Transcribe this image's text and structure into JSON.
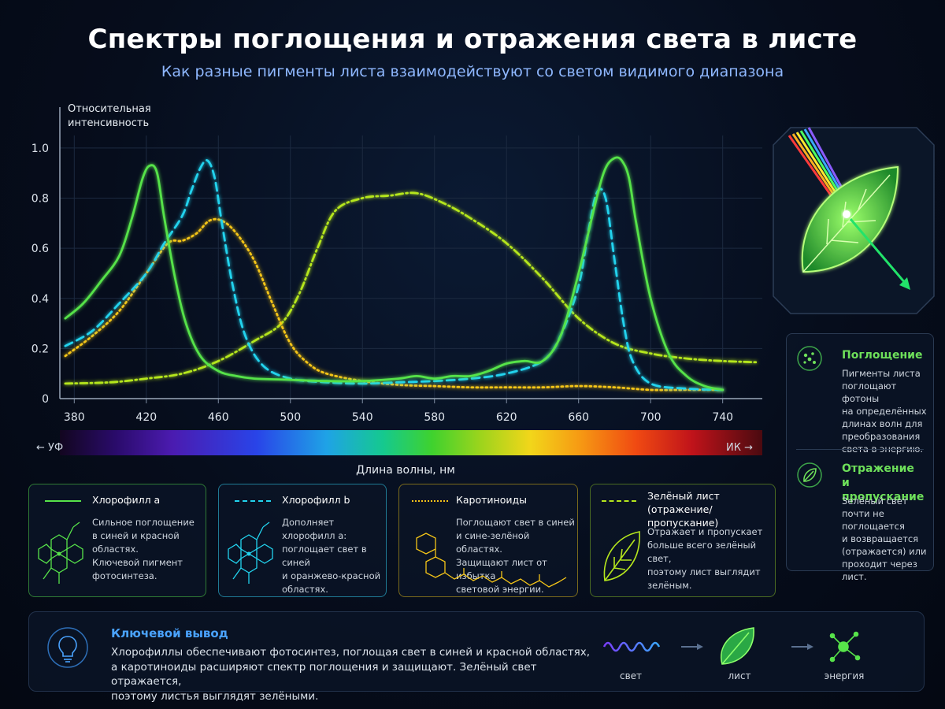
{
  "header": {
    "title": "Спектры поглощения и отражения света в листе",
    "subtitle": "Как разные пигменты листа взаимодействуют со светом видимого диапазона"
  },
  "axes": {
    "y_label_line1": "Относительная",
    "y_label_line2": "интенсивность",
    "x_label": "Длина волны, нм",
    "uv_label": "← УФ",
    "ir_label": "ИК →"
  },
  "chart_data": {
    "type": "line",
    "xlim": [
      372,
      762
    ],
    "ylim": [
      0,
      1.05
    ],
    "x_ticks": [
      380,
      420,
      460,
      500,
      540,
      580,
      620,
      660,
      700,
      740
    ],
    "y_ticks": [
      "0",
      "0.2",
      "0.4",
      "0.6",
      "0.8",
      "1.0"
    ],
    "grid": true,
    "series": [
      {
        "name": "Хлорофилл a",
        "color": "#57e34a",
        "style": "solid",
        "x": [
          375,
          385,
          395,
          405,
          412,
          418,
          422,
          426,
          430,
          436,
          442,
          450,
          460,
          470,
          480,
          500,
          520,
          540,
          560,
          570,
          580,
          590,
          600,
          610,
          620,
          630,
          640,
          650,
          660,
          670,
          675,
          680,
          684,
          688,
          692,
          700,
          710,
          720,
          730,
          740
        ],
        "y": [
          0.32,
          0.38,
          0.47,
          0.57,
          0.72,
          0.88,
          0.93,
          0.9,
          0.72,
          0.48,
          0.3,
          0.17,
          0.11,
          0.09,
          0.08,
          0.075,
          0.07,
          0.07,
          0.08,
          0.09,
          0.08,
          0.09,
          0.09,
          0.11,
          0.14,
          0.15,
          0.15,
          0.25,
          0.5,
          0.8,
          0.92,
          0.96,
          0.95,
          0.88,
          0.7,
          0.4,
          0.18,
          0.09,
          0.05,
          0.035
        ]
      },
      {
        "name": "Хлорофилл b",
        "color": "#22d3ee",
        "style": "dashed",
        "x": [
          375,
          390,
          405,
          420,
          430,
          440,
          445,
          450,
          454,
          458,
          462,
          468,
          475,
          485,
          500,
          520,
          540,
          560,
          580,
          600,
          620,
          640,
          650,
          660,
          665,
          670,
          675,
          680,
          685,
          690,
          700,
          720,
          740
        ],
        "y": [
          0.21,
          0.27,
          0.38,
          0.5,
          0.62,
          0.73,
          0.83,
          0.92,
          0.95,
          0.88,
          0.7,
          0.45,
          0.25,
          0.13,
          0.08,
          0.065,
          0.06,
          0.065,
          0.07,
          0.08,
          0.1,
          0.15,
          0.25,
          0.45,
          0.65,
          0.82,
          0.8,
          0.55,
          0.3,
          0.15,
          0.06,
          0.04,
          0.035
        ]
      },
      {
        "name": "Каротиноиды",
        "color": "#f5c518",
        "style": "dotted",
        "x": [
          375,
          390,
          405,
          420,
          432,
          440,
          448,
          455,
          462,
          470,
          480,
          490,
          500,
          510,
          520,
          540,
          560,
          580,
          600,
          620,
          640,
          660,
          680,
          700,
          720,
          740
        ],
        "y": [
          0.17,
          0.25,
          0.35,
          0.5,
          0.62,
          0.63,
          0.66,
          0.71,
          0.71,
          0.66,
          0.55,
          0.38,
          0.22,
          0.14,
          0.1,
          0.07,
          0.055,
          0.05,
          0.045,
          0.045,
          0.045,
          0.05,
          0.045,
          0.035,
          0.035,
          0.035
        ]
      },
      {
        "name": "Зелёный лист (отражение/пропускание)",
        "color": "#b5e61d",
        "style": "dashdot",
        "x": [
          375,
          400,
          420,
          440,
          460,
          480,
          495,
          505,
          515,
          525,
          540,
          555,
          570,
          585,
          600,
          620,
          640,
          660,
          680,
          700,
          720,
          740,
          760
        ],
        "y": [
          0.06,
          0.065,
          0.08,
          0.1,
          0.15,
          0.23,
          0.3,
          0.42,
          0.6,
          0.75,
          0.8,
          0.81,
          0.82,
          0.78,
          0.72,
          0.62,
          0.48,
          0.32,
          0.22,
          0.18,
          0.16,
          0.15,
          0.145
        ]
      }
    ]
  },
  "legend": {
    "chl_a": {
      "name": "Хлорофилл a",
      "desc": [
        "Сильное поглощение",
        "в синей и красной областях.",
        "Ключевой пигмент",
        "фотосинтеза."
      ]
    },
    "chl_b": {
      "name": "Хлорофилл b",
      "desc": [
        "Дополняет хлорофилл a:",
        "поглощает свет в синей",
        "и оранжево-красной",
        "областях."
      ]
    },
    "carot": {
      "name": "Каротиноиды",
      "desc": [
        "Поглощают свет в синей",
        "и сине-зелёной областях.",
        "Защищают лист от избытка",
        "световой энергии."
      ]
    },
    "leaf": {
      "name_line1": "Зелёный лист",
      "name_line2": "(отражение/пропускание)",
      "desc": [
        "Отражает и пропускает",
        "больше всего зелёный свет,",
        "поэтому лист выглядит",
        "зелёным."
      ]
    }
  },
  "side_panel": {
    "absorption_title": "Поглощение",
    "absorption_text": [
      "Пигменты листа",
      "поглощают фотоны",
      "на определённых",
      "длинах волн для",
      "преобразования",
      "света в энергию."
    ],
    "reflection_title_line1": "Отражение",
    "reflection_title_line2": "и пропускание",
    "reflection_text": [
      "Зелёный свет",
      "почти не поглощается",
      "и возвращается",
      "(отражается) или",
      "проходит через лист."
    ]
  },
  "conclusion": {
    "title": "Ключевой вывод",
    "lines": [
      "Хлорофиллы обеспечивают фотосинтез, поглощая свет в синей и красной областях,",
      "а каротиноиды расширяют спектр поглощения и защищают. Зелёный свет отражается,",
      "поэтому листья выглядят зелёными."
    ],
    "flow": [
      "свет",
      "лист",
      "энергия"
    ]
  },
  "colors": {
    "chl_a": "#57e34a",
    "chl_b": "#22d3ee",
    "carot": "#f5c518",
    "leaf": "#b5e61d",
    "accent_green": "#6ee05a",
    "accent_blue": "#4aa3ff"
  }
}
